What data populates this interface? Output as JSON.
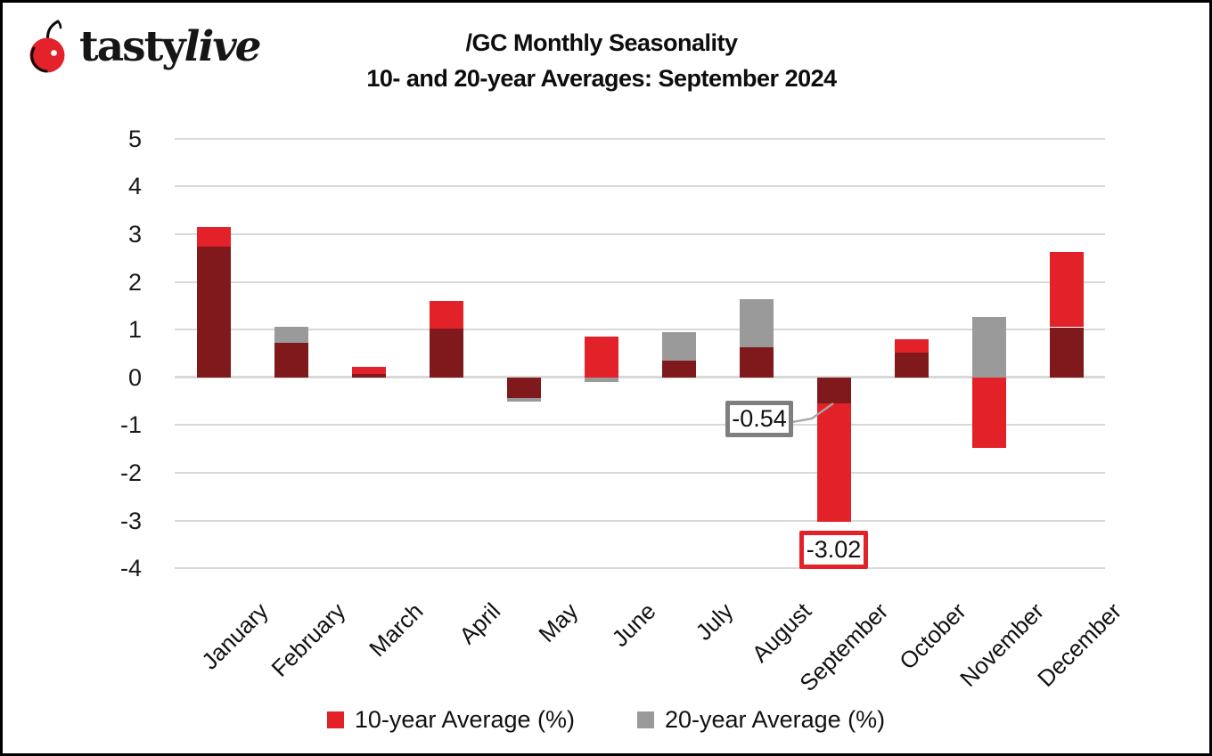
{
  "brand": {
    "name_regular": "tasty",
    "name_italic": "live",
    "icon": "cherry-icon"
  },
  "title": {
    "line1": "/GC Monthly Seasonality",
    "line2": "10- and 20-year Averages: September 2024"
  },
  "chart_data": {
    "type": "bar",
    "categories": [
      "January",
      "February",
      "March",
      "April",
      "May",
      "June",
      "July",
      "August",
      "September",
      "October",
      "November",
      "December"
    ],
    "series": [
      {
        "name": "10-year Average (%)",
        "color": "#E32128",
        "values": [
          3.15,
          0.72,
          0.23,
          1.6,
          -0.44,
          0.85,
          0.35,
          0.63,
          -3.02,
          0.8,
          -1.47,
          2.63
        ]
      },
      {
        "name": "20-year Average (%)",
        "color": "#9A9A9A",
        "values": [
          2.73,
          1.06,
          0.07,
          1.03,
          -0.51,
          -0.1,
          0.94,
          1.63,
          -0.54,
          0.52,
          1.27,
          1.05
        ]
      }
    ],
    "overlap_color": "#7F191C",
    "gridline_color": "#D9D9D9",
    "ylim": [
      -4,
      5
    ],
    "yticks": [
      5,
      4,
      3,
      2,
      1,
      0,
      -1,
      -2,
      -3,
      -4
    ],
    "grid": true,
    "legend_position": "bottom",
    "annotations": [
      {
        "text": "-0.54",
        "target": "September 20-year Average",
        "style": "gray-box"
      },
      {
        "text": "-3.02",
        "target": "September 10-year Average",
        "style": "red-box"
      }
    ]
  },
  "legend": {
    "items": [
      {
        "label": "10-year Average (%)",
        "color": "#E32128"
      },
      {
        "label": "20-year Average (%)",
        "color": "#9A9A9A"
      }
    ]
  }
}
